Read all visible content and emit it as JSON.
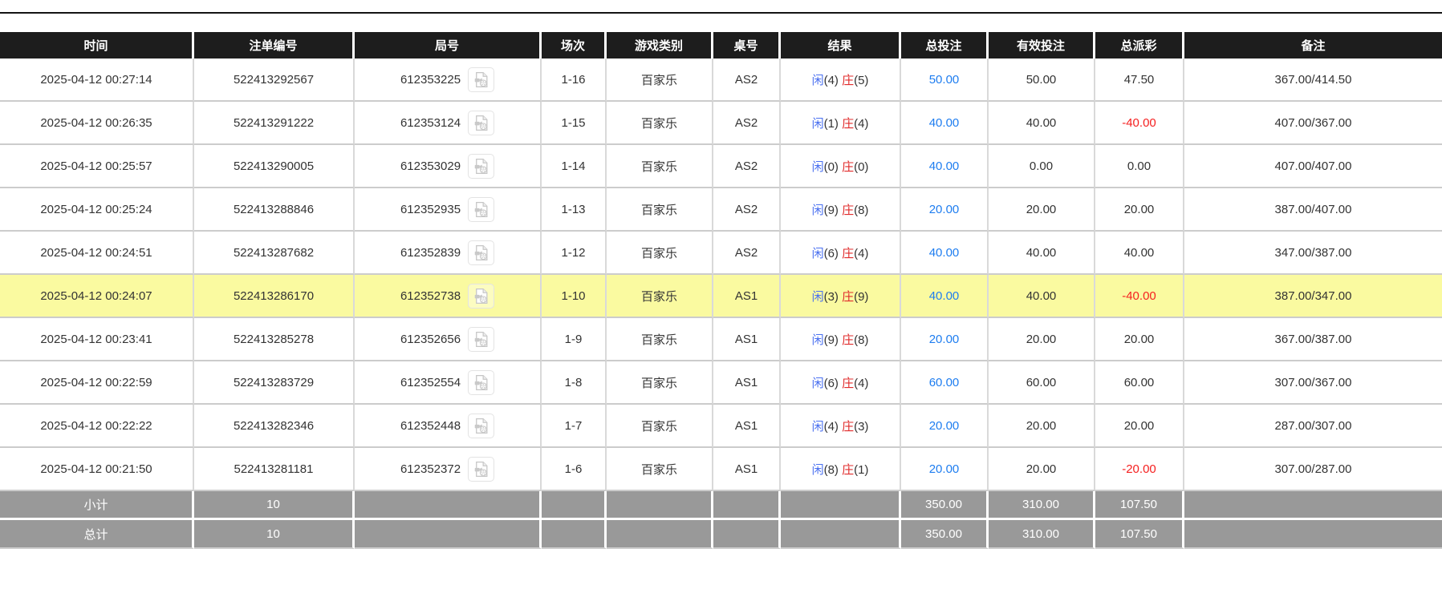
{
  "colors": {
    "header_bg": "#1d1d1d",
    "row_text": "#333333",
    "border_gray": "#cccccc",
    "player_blue": "#4a70f0",
    "banker_red": "#e02b2b",
    "link_blue": "#1e7df0",
    "negative_red": "#f52020",
    "highlight_yellow": "#fafaa0",
    "summary_bg": "#999999"
  },
  "table": {
    "columns": [
      {
        "key": "time",
        "label": "时间"
      },
      {
        "key": "bet_id",
        "label": "注单编号"
      },
      {
        "key": "round_id",
        "label": "局号"
      },
      {
        "key": "session",
        "label": "场次"
      },
      {
        "key": "game_type",
        "label": "游戏类别"
      },
      {
        "key": "table_no",
        "label": "桌号"
      },
      {
        "key": "result",
        "label": "结果"
      },
      {
        "key": "total_bet",
        "label": "总投注"
      },
      {
        "key": "valid_bet",
        "label": "有效投注"
      },
      {
        "key": "payout",
        "label": "总派彩"
      },
      {
        "key": "remark",
        "label": "备注"
      }
    ],
    "result_labels": {
      "player": "闲",
      "banker": "庄"
    },
    "rows": [
      {
        "time": "2025-04-12 00:27:14",
        "bet_id": "522413292567",
        "round_id": "612353225",
        "session": "1-16",
        "game_type": "百家乐",
        "table_no": "AS2",
        "result": {
          "player": "4",
          "banker": "5"
        },
        "total_bet": "50.00",
        "valid_bet": "50.00",
        "payout": "47.50",
        "remark": "367.00/414.50",
        "highlighted": false
      },
      {
        "time": "2025-04-12 00:26:35",
        "bet_id": "522413291222",
        "round_id": "612353124",
        "session": "1-15",
        "game_type": "百家乐",
        "table_no": "AS2",
        "result": {
          "player": "1",
          "banker": "4"
        },
        "total_bet": "40.00",
        "valid_bet": "40.00",
        "payout": "-40.00",
        "remark": "407.00/367.00",
        "highlighted": false
      },
      {
        "time": "2025-04-12 00:25:57",
        "bet_id": "522413290005",
        "round_id": "612353029",
        "session": "1-14",
        "game_type": "百家乐",
        "table_no": "AS2",
        "result": {
          "player": "0",
          "banker": "0"
        },
        "total_bet": "40.00",
        "valid_bet": "0.00",
        "payout": "0.00",
        "remark": "407.00/407.00",
        "highlighted": false
      },
      {
        "time": "2025-04-12 00:25:24",
        "bet_id": "522413288846",
        "round_id": "612352935",
        "session": "1-13",
        "game_type": "百家乐",
        "table_no": "AS2",
        "result": {
          "player": "9",
          "banker": "8"
        },
        "total_bet": "20.00",
        "valid_bet": "20.00",
        "payout": "20.00",
        "remark": "387.00/407.00",
        "highlighted": false
      },
      {
        "time": "2025-04-12 00:24:51",
        "bet_id": "522413287682",
        "round_id": "612352839",
        "session": "1-12",
        "game_type": "百家乐",
        "table_no": "AS2",
        "result": {
          "player": "6",
          "banker": "4"
        },
        "total_bet": "40.00",
        "valid_bet": "40.00",
        "payout": "40.00",
        "remark": "347.00/387.00",
        "highlighted": false
      },
      {
        "time": "2025-04-12 00:24:07",
        "bet_id": "522413286170",
        "round_id": "612352738",
        "session": "1-10",
        "game_type": "百家乐",
        "table_no": "AS1",
        "result": {
          "player": "3",
          "banker": "9"
        },
        "total_bet": "40.00",
        "valid_bet": "40.00",
        "payout": "-40.00",
        "remark": "387.00/347.00",
        "highlighted": true
      },
      {
        "time": "2025-04-12 00:23:41",
        "bet_id": "522413285278",
        "round_id": "612352656",
        "session": "1-9",
        "game_type": "百家乐",
        "table_no": "AS1",
        "result": {
          "player": "9",
          "banker": "8"
        },
        "total_bet": "20.00",
        "valid_bet": "20.00",
        "payout": "20.00",
        "remark": "367.00/387.00",
        "highlighted": false
      },
      {
        "time": "2025-04-12 00:22:59",
        "bet_id": "522413283729",
        "round_id": "612352554",
        "session": "1-8",
        "game_type": "百家乐",
        "table_no": "AS1",
        "result": {
          "player": "6",
          "banker": "4"
        },
        "total_bet": "60.00",
        "valid_bet": "60.00",
        "payout": "60.00",
        "remark": "307.00/367.00",
        "highlighted": false
      },
      {
        "time": "2025-04-12 00:22:22",
        "bet_id": "522413282346",
        "round_id": "612352448",
        "session": "1-7",
        "game_type": "百家乐",
        "table_no": "AS1",
        "result": {
          "player": "4",
          "banker": "3"
        },
        "total_bet": "20.00",
        "valid_bet": "20.00",
        "payout": "20.00",
        "remark": "287.00/307.00",
        "highlighted": false
      },
      {
        "time": "2025-04-12 00:21:50",
        "bet_id": "522413281181",
        "round_id": "612352372",
        "session": "1-6",
        "game_type": "百家乐",
        "table_no": "AS1",
        "result": {
          "player": "8",
          "banker": "1"
        },
        "total_bet": "20.00",
        "valid_bet": "20.00",
        "payout": "-20.00",
        "remark": "307.00/287.00",
        "highlighted": false
      }
    ],
    "summary": [
      {
        "key": "subtotal",
        "label": "小计",
        "count": "10",
        "total_bet": "350.00",
        "valid_bet": "310.00",
        "payout": "107.50"
      },
      {
        "key": "total",
        "label": "总计",
        "count": "10",
        "total_bet": "350.00",
        "valid_bet": "310.00",
        "payout": "107.50"
      }
    ]
  }
}
